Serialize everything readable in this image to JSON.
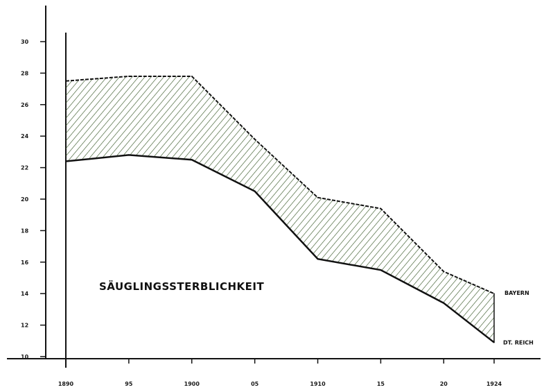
{
  "chart_data": {
    "type": "area",
    "title": "SÄUGLINGSSTERBLICHKEIT",
    "x": [
      1890,
      1895,
      1900,
      1905,
      1910,
      1915,
      1920,
      1924
    ],
    "x_tick_labels": [
      "1890",
      "95",
      "1900",
      "05",
      "1910",
      "15",
      "20",
      "1924"
    ],
    "y_ticks": [
      10,
      12,
      14,
      16,
      18,
      20,
      22,
      24,
      26,
      28,
      30
    ],
    "y_tick_labels": [
      "10",
      "12",
      "14",
      "16",
      "18",
      "20",
      "22",
      "24",
      "26",
      "28",
      "30"
    ],
    "ylim": [
      10,
      30
    ],
    "series": [
      {
        "name": "BAYERN",
        "values": [
          27.5,
          27.8,
          27.8,
          23.8,
          20.1,
          19.4,
          15.4,
          14.0
        ]
      },
      {
        "name": "DT. REICH",
        "values": [
          22.4,
          22.8,
          22.5,
          20.5,
          16.2,
          15.5,
          13.4,
          10.9
        ]
      }
    ],
    "fill_between": true,
    "colors": {
      "hatch": "#3a5a2a",
      "line": "#111111"
    }
  }
}
